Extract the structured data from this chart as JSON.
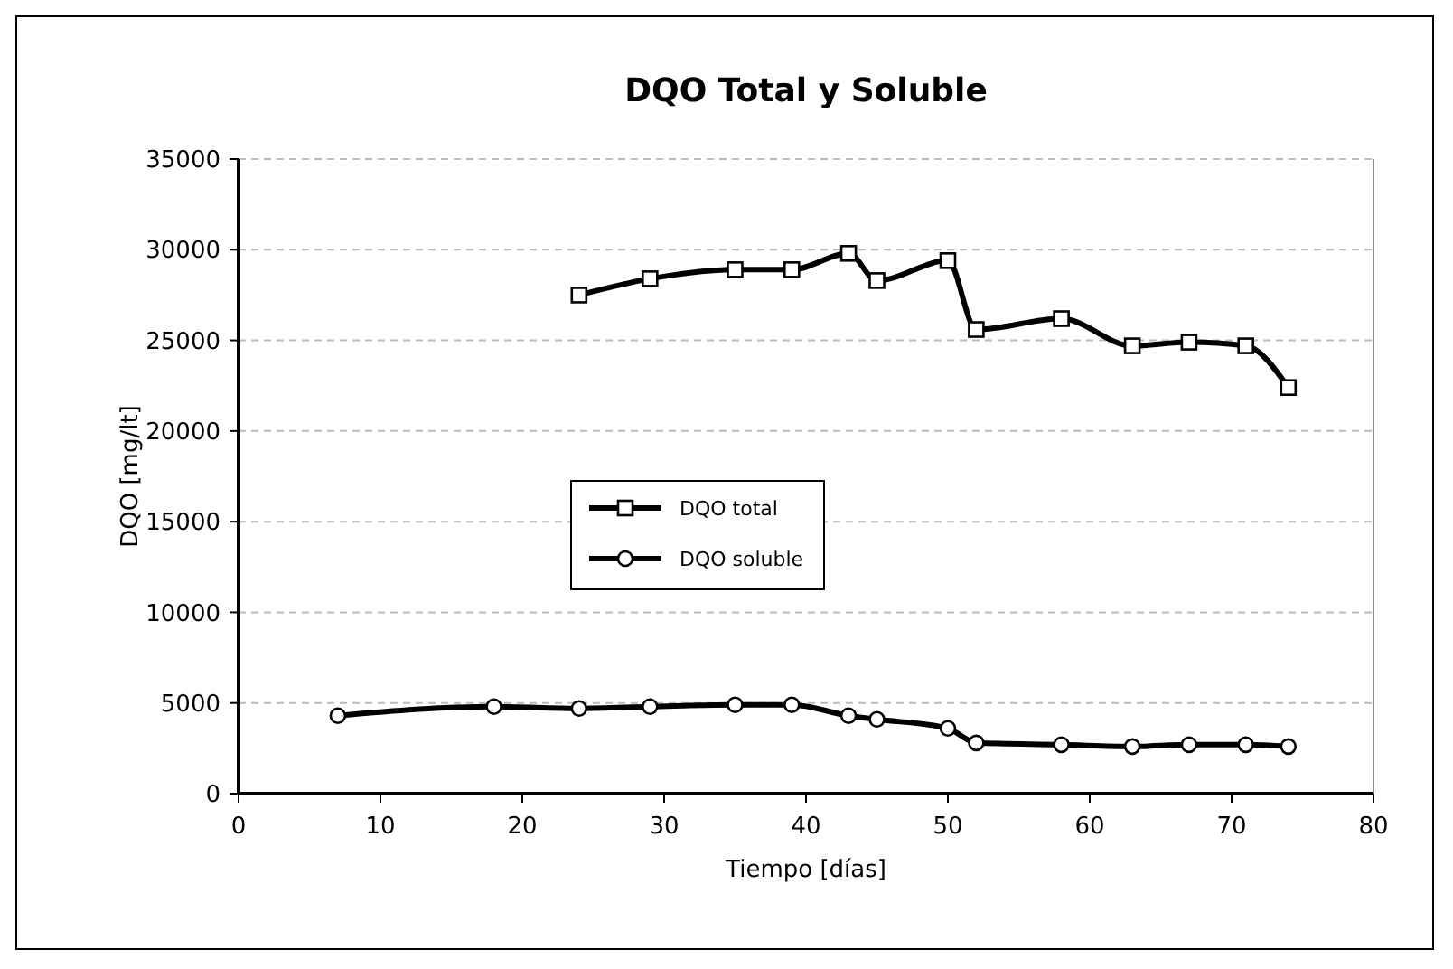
{
  "chart_data": {
    "type": "line",
    "title": "DQO Total y Soluble",
    "xlabel": "Tiempo [días]",
    "ylabel": "DQO [mg/lt]",
    "xlim": [
      0,
      80
    ],
    "xticks": [
      0,
      10,
      20,
      30,
      40,
      50,
      60,
      70,
      80
    ],
    "ylim": [
      0,
      35000
    ],
    "yticks": [
      0,
      5000,
      10000,
      15000,
      20000,
      25000,
      30000,
      35000
    ],
    "grid": "y",
    "legend": "center",
    "line_style": "solid",
    "series": [
      {
        "name": "DQO total",
        "color": "#000000",
        "marker": "square",
        "x": [
          24,
          29,
          35,
          39,
          43,
          45,
          50,
          52,
          58,
          63,
          67,
          71,
          74
        ],
        "values": [
          27500,
          28400,
          28900,
          28900,
          29800,
          28300,
          29400,
          25600,
          26200,
          24700,
          24900,
          24700,
          22400
        ]
      },
      {
        "name": "DQO soluble",
        "color": "#000000",
        "marker": "circle",
        "x": [
          7,
          18,
          24,
          29,
          35,
          39,
          43,
          45,
          50,
          52,
          58,
          63,
          67,
          71,
          74
        ],
        "values": [
          4300,
          4800,
          4700,
          4800,
          4900,
          4900,
          4300,
          4100,
          3600,
          2800,
          2700,
          2600,
          2700,
          2700,
          2600
        ]
      }
    ]
  }
}
